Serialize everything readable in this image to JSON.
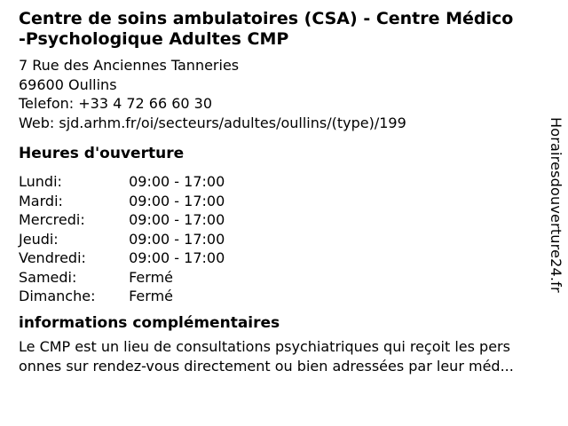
{
  "page": {
    "title": "Centre de soins ambulatoires (CSA) - Centre Médico\n-Psychologique Adultes CMP",
    "contact": {
      "address_line1": "7 Rue des Anciennes Tanneries",
      "address_line2": "69600 Oullins",
      "phone_line": "Telefon: +33 4 72 66 60 30",
      "web_line": "Web: sjd.arhm.fr/oi/secteurs/adultes/oullins/(type)/199"
    },
    "hours": {
      "heading": "Heures d'ouverture",
      "rows": [
        {
          "day": "Lundi:",
          "hours": "09:00 - 17:00"
        },
        {
          "day": "Mardi:",
          "hours": "09:00 - 17:00"
        },
        {
          "day": "Mercredi:",
          "hours": "09:00 - 17:00"
        },
        {
          "day": "Jeudi:",
          "hours": "09:00 - 17:00"
        },
        {
          "day": "Vendredi:",
          "hours": "09:00 - 17:00"
        },
        {
          "day": "Samedi:",
          "hours": "Fermé"
        },
        {
          "day": "Dimanche:",
          "hours": "Fermé"
        }
      ]
    },
    "info": {
      "heading": "informations complémentaires",
      "text": "Le CMP est un lieu de consultations psychiatriques qui reçoit les pers\nonnes sur rendez-vous directement ou bien adressées par leur méd..."
    },
    "watermark": "Horairesdouverture24.fr",
    "colors": {
      "text": "#000000",
      "background": "#ffffff"
    }
  }
}
